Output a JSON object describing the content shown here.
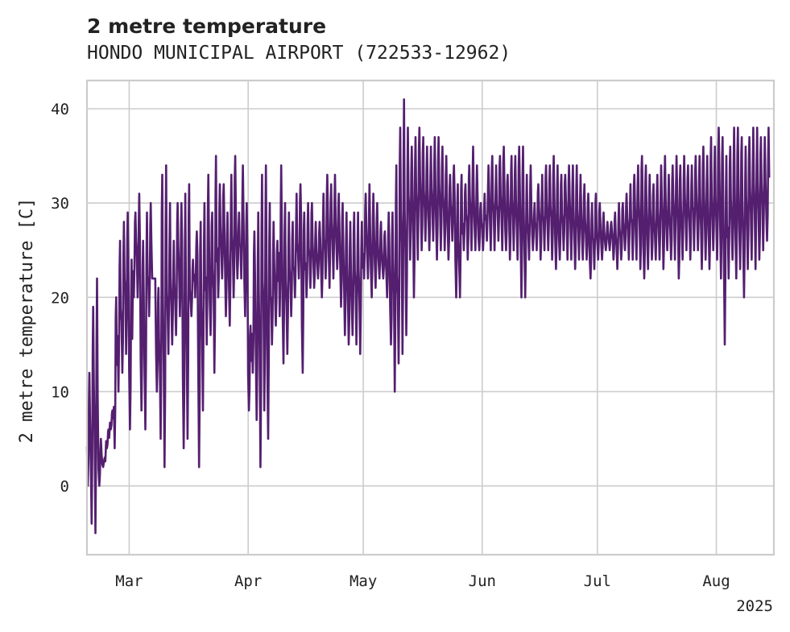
{
  "chart_data": {
    "type": "line",
    "title": "2 metre temperature",
    "subtitle": "HONDO MUNICIPAL AIRPORT (722533-12962)",
    "ylabel": "2 metre temperature [C]",
    "xlabel": "",
    "x_start": "2025-02-18",
    "x_end": "2025-08-16",
    "ylim": [
      -7.3,
      43.0
    ],
    "yticks": [
      0,
      10,
      20,
      30,
      40
    ],
    "xticks": [
      {
        "date": "2025-03-01",
        "label": "Mar"
      },
      {
        "date": "2025-04-01",
        "label": "Apr"
      },
      {
        "date": "2025-05-01",
        "label": "May"
      },
      {
        "date": "2025-06-01",
        "label": "Jun"
      },
      {
        "date": "2025-07-01",
        "label": "Jul"
      },
      {
        "date": "2025-08-01",
        "label": "Aug"
      }
    ],
    "year_label": "2025",
    "grid": true,
    "color": "#541f6f",
    "series": [
      {
        "x": [
          "2025-02-18",
          "2025-02-19",
          "2025-02-20",
          "2025-02-21",
          "2025-02-22",
          "2025-02-23",
          "2025-02-24",
          "2025-02-25",
          "2025-02-26",
          "2025-02-27",
          "2025-02-28",
          "2025-03-01",
          "2025-03-02",
          "2025-03-03",
          "2025-03-04",
          "2025-03-05",
          "2025-03-06",
          "2025-03-07",
          "2025-03-08",
          "2025-03-09",
          "2025-03-10",
          "2025-03-11",
          "2025-03-12",
          "2025-03-13",
          "2025-03-14",
          "2025-03-15",
          "2025-03-16",
          "2025-03-17",
          "2025-03-18",
          "2025-03-19",
          "2025-03-20",
          "2025-03-21",
          "2025-03-22",
          "2025-03-23",
          "2025-03-24",
          "2025-03-25",
          "2025-03-26",
          "2025-03-27",
          "2025-03-28",
          "2025-03-29",
          "2025-03-30",
          "2025-03-31",
          "2025-04-01",
          "2025-04-02",
          "2025-04-03",
          "2025-04-04",
          "2025-04-05",
          "2025-04-06",
          "2025-04-07",
          "2025-04-08",
          "2025-04-09",
          "2025-04-10",
          "2025-04-11",
          "2025-04-12",
          "2025-04-13",
          "2025-04-14",
          "2025-04-15",
          "2025-04-16",
          "2025-04-17",
          "2025-04-18",
          "2025-04-19",
          "2025-04-20",
          "2025-04-21",
          "2025-04-22",
          "2025-04-23",
          "2025-04-24",
          "2025-04-25",
          "2025-04-26",
          "2025-04-27",
          "2025-04-28",
          "2025-04-29",
          "2025-04-30",
          "2025-05-01",
          "2025-05-02",
          "2025-05-03",
          "2025-05-04",
          "2025-05-05",
          "2025-05-06",
          "2025-05-07",
          "2025-05-08",
          "2025-05-09",
          "2025-05-10",
          "2025-05-11",
          "2025-05-12",
          "2025-05-13",
          "2025-05-14",
          "2025-05-15",
          "2025-05-16",
          "2025-05-17",
          "2025-05-18",
          "2025-05-19",
          "2025-05-20",
          "2025-05-21",
          "2025-05-22",
          "2025-05-23",
          "2025-05-24",
          "2025-05-25",
          "2025-05-26",
          "2025-05-27",
          "2025-05-28",
          "2025-05-29",
          "2025-05-30",
          "2025-05-31",
          "2025-06-01",
          "2025-06-02",
          "2025-06-03",
          "2025-06-04",
          "2025-06-05",
          "2025-06-06",
          "2025-06-07",
          "2025-06-08",
          "2025-06-09",
          "2025-06-10",
          "2025-06-11",
          "2025-06-12",
          "2025-06-13",
          "2025-06-14",
          "2025-06-15",
          "2025-06-16",
          "2025-06-17",
          "2025-06-18",
          "2025-06-19",
          "2025-06-20",
          "2025-06-21",
          "2025-06-22",
          "2025-06-23",
          "2025-06-24",
          "2025-06-25",
          "2025-06-26",
          "2025-06-27",
          "2025-06-28",
          "2025-06-29",
          "2025-06-30",
          "2025-07-01",
          "2025-07-02",
          "2025-07-03",
          "2025-07-04",
          "2025-07-05",
          "2025-07-06",
          "2025-07-07",
          "2025-07-08",
          "2025-07-09",
          "2025-07-10",
          "2025-07-11",
          "2025-07-12",
          "2025-07-13",
          "2025-07-14",
          "2025-07-15",
          "2025-07-16",
          "2025-07-17",
          "2025-07-18",
          "2025-07-19",
          "2025-07-20",
          "2025-07-21",
          "2025-07-22",
          "2025-07-23",
          "2025-07-24",
          "2025-07-25",
          "2025-07-26",
          "2025-07-27",
          "2025-07-28",
          "2025-07-29",
          "2025-07-30",
          "2025-07-31",
          "2025-08-01",
          "2025-08-02",
          "2025-08-03",
          "2025-08-04",
          "2025-08-05",
          "2025-08-06",
          "2025-08-07",
          "2025-08-08",
          "2025-08-09",
          "2025-08-10",
          "2025-08-11",
          "2025-08-12",
          "2025-08-13",
          "2025-08-14",
          "2025-08-15"
        ],
        "daily_min": [
          0,
          -4,
          -5,
          0,
          2,
          4,
          6,
          4,
          10,
          12,
          14,
          6,
          20,
          20,
          8,
          6,
          18,
          22,
          10,
          5,
          2,
          14,
          15,
          16,
          18,
          4,
          5,
          18,
          20,
          2,
          8,
          15,
          16,
          12,
          20,
          22,
          18,
          17,
          20,
          22,
          22,
          18,
          8,
          12,
          7,
          2,
          8,
          5,
          15,
          17,
          18,
          13,
          14,
          18,
          20,
          22,
          12,
          20,
          21,
          21,
          22,
          20,
          22,
          21,
          22,
          23,
          19,
          16,
          15,
          16,
          15,
          14,
          22,
          22,
          20,
          21,
          22,
          22,
          20,
          15,
          10,
          13,
          14,
          16,
          24,
          20,
          24,
          25,
          26,
          25,
          26,
          24,
          25,
          25,
          24,
          26,
          20,
          20,
          25,
          24,
          25,
          25,
          25,
          25,
          26,
          25,
          25,
          26,
          25,
          25,
          24,
          25,
          24,
          20,
          20,
          24,
          25,
          25,
          24,
          25,
          25,
          24,
          23,
          24,
          25,
          24,
          24,
          23,
          24,
          24,
          24,
          22,
          23,
          24,
          24,
          25,
          25,
          24,
          23,
          24,
          25,
          24,
          24,
          24,
          23,
          22,
          23,
          24,
          24,
          24,
          23,
          25,
          24,
          24,
          22,
          24,
          25,
          24,
          25,
          25,
          23,
          24,
          23,
          25,
          24,
          22,
          15,
          22,
          24,
          22,
          23,
          20,
          23,
          24,
          23,
          24,
          25,
          26
        ],
        "daily_max": [
          12,
          19,
          22,
          5,
          3,
          6,
          8,
          20,
          26,
          28,
          29,
          24,
          29,
          31,
          26,
          29,
          30,
          22,
          21,
          33,
          34,
          30,
          26,
          30,
          30,
          31,
          32,
          24,
          27,
          28,
          30,
          33,
          29,
          35,
          32,
          32,
          29,
          33,
          35,
          29,
          34,
          30,
          17,
          27,
          29,
          33,
          34,
          30,
          28,
          26,
          34,
          30,
          29,
          28,
          31,
          32,
          29,
          30,
          30,
          28,
          28,
          31,
          33,
          32,
          33,
          31,
          30,
          29,
          28,
          29,
          29,
          28,
          31,
          32,
          31,
          30,
          28,
          27,
          29,
          29,
          34,
          38,
          41,
          38,
          36,
          37,
          38,
          37,
          36,
          36,
          37,
          37,
          36,
          35,
          33,
          34,
          32,
          33,
          32,
          34,
          36,
          34,
          30,
          31,
          34,
          35,
          34,
          35,
          36,
          33,
          35,
          35,
          36,
          36,
          33,
          34,
          30,
          32,
          33,
          34,
          34,
          35,
          34,
          33,
          33,
          34,
          34,
          34,
          33,
          32,
          31,
          30,
          31,
          30,
          29,
          28,
          28,
          29,
          30,
          30,
          31,
          32,
          33,
          34,
          35,
          34,
          33,
          32,
          33,
          34,
          35,
          33,
          34,
          35,
          34,
          35,
          34,
          34,
          35,
          35,
          36,
          35,
          37,
          36,
          38,
          37,
          35,
          36,
          38,
          38,
          37,
          36,
          37,
          38,
          38,
          37,
          37,
          38
        ]
      }
    ]
  }
}
